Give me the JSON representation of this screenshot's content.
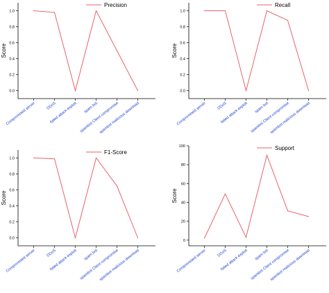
{
  "chart_data": [
    {
      "type": "line",
      "categories": [
        "Compromised server",
        "DDoS",
        "failed attack exploit",
        "spam bot",
        "spambot Client compromise",
        "spambot malicious download"
      ],
      "series": [
        {
          "name": "Precision",
          "values": [
            1.0,
            0.98,
            0.0,
            1.0,
            0.5,
            0.0
          ]
        }
      ],
      "ylabel": "Score",
      "ylim": [
        -0.1,
        1.1
      ],
      "yticks": [
        "0.0",
        "0.2",
        "0.4",
        "0.6",
        "0.8",
        "1.0"
      ],
      "legend": "top-right",
      "color": "#e8626b"
    },
    {
      "type": "line",
      "categories": [
        "Compromised server",
        "DDoS",
        "failed attack exploit",
        "spam bot",
        "spambot Client compromise",
        "spambot malicious download"
      ],
      "series": [
        {
          "name": "Recall",
          "values": [
            1.0,
            1.0,
            0.0,
            1.0,
            0.88,
            0.0
          ]
        }
      ],
      "ylabel": "Score",
      "ylim": [
        -0.1,
        1.1
      ],
      "yticks": [
        "0.0",
        "0.2",
        "0.4",
        "0.6",
        "0.8",
        "1.0"
      ],
      "legend": "top-right",
      "color": "#e8626b"
    },
    {
      "type": "line",
      "categories": [
        "Compromised server",
        "DDoS",
        "failed attack exploit",
        "spam bot",
        "spambot Client compromise",
        "spambot malicious download"
      ],
      "series": [
        {
          "name": "F1-Score",
          "values": [
            1.0,
            0.99,
            0.0,
            1.0,
            0.65,
            0.0
          ]
        }
      ],
      "ylabel": "Score",
      "ylim": [
        -0.1,
        1.1
      ],
      "yticks": [
        "0.0",
        "0.2",
        "0.4",
        "0.6",
        "0.8",
        "1.0"
      ],
      "legend": "top-right",
      "color": "#e8626b"
    },
    {
      "type": "line",
      "categories": [
        "Compromised server",
        "DDoS",
        "failed attack exploit",
        "spam bot",
        "spambot Client compromise",
        "spambot malicious download"
      ],
      "series": [
        {
          "name": "Support",
          "values": [
            2,
            49,
            3,
            90,
            31,
            25
          ]
        }
      ],
      "ylabel": "Score",
      "ylim": [
        -6,
        100
      ],
      "yticks": [
        "0",
        "20",
        "40",
        "60",
        "80",
        "100"
      ],
      "legend": "top-right",
      "color": "#e8626b"
    }
  ]
}
